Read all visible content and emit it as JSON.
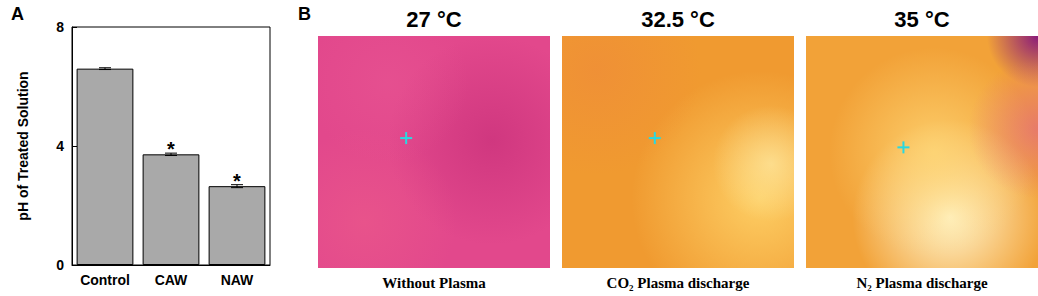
{
  "chart_data": {
    "type": "bar",
    "panel_label": "A",
    "y_label": "pH of Treated Solution",
    "categories": [
      "Control",
      "CAW",
      "NAW"
    ],
    "values": [
      6.6,
      3.72,
      2.65
    ],
    "errors": [
      0.03,
      0.04,
      0.05
    ],
    "annotations": [
      {
        "category": "CAW",
        "text": "*"
      },
      {
        "category": "NAW",
        "text": "*"
      }
    ],
    "color": "#a9a9a9",
    "ylim": [
      0,
      8
    ],
    "yticks": [
      0,
      4,
      8
    ],
    "grid": false
  },
  "thermal_images": {
    "panel_label": "B",
    "images": [
      {
        "temperature": "27 °C",
        "caption": "Without Plasma"
      },
      {
        "temperature": "32.5 °C",
        "caption": "CO₂ Plasma discharge"
      },
      {
        "temperature": "35 °C",
        "caption": "N₂ Plasma discharge"
      }
    ]
  }
}
